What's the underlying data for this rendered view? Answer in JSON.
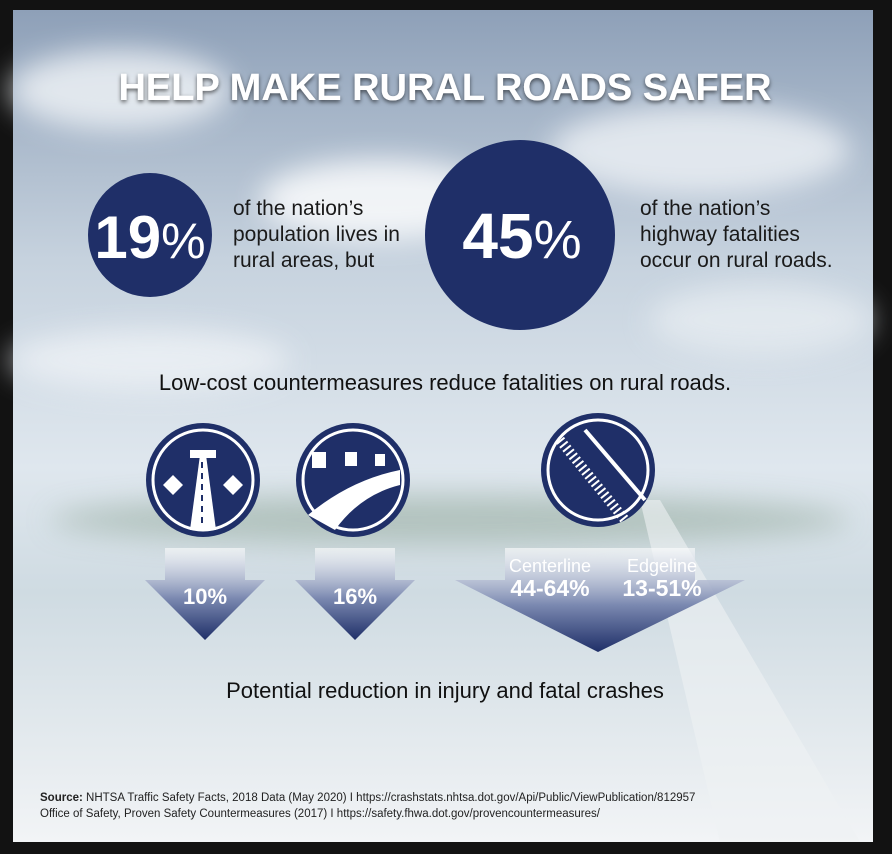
{
  "header": {
    "title": "HELP MAKE RURAL ROADS SAFER"
  },
  "stats": [
    {
      "number": "19",
      "unit": "%",
      "lines": [
        "of the nation’s",
        "population lives in",
        "rural areas, but"
      ]
    },
    {
      "number": "45",
      "unit": "%",
      "lines": [
        "of the nation’s",
        "highway fatalities",
        "occur on rural roads."
      ]
    }
  ],
  "subtitle": "Low-cost countermeasures reduce fatalities on rural roads.",
  "countermeasures": [
    {
      "reduction": "10%"
    },
    {
      "reduction": "16%"
    },
    {
      "items": [
        {
          "label": "Centerline",
          "reduction": "44-64%"
        },
        {
          "label": "Edgeline",
          "reduction": "13-51%"
        }
      ]
    }
  ],
  "caption": "Potential reduction in injury and fatal crashes",
  "sources": [
    {
      "label": "Source:",
      "text": " NHTSA Traffic Safety Facts, 2018 Data (May 2020) I https://crashstats.nhtsa.dot.gov/Api/Public/ViewPublication/812957"
    },
    {
      "text": "Office of Safety, Proven Safety Countermeasures (2017) I https://safety.fhwa.dot.gov/provencountermeasures/"
    }
  ]
}
